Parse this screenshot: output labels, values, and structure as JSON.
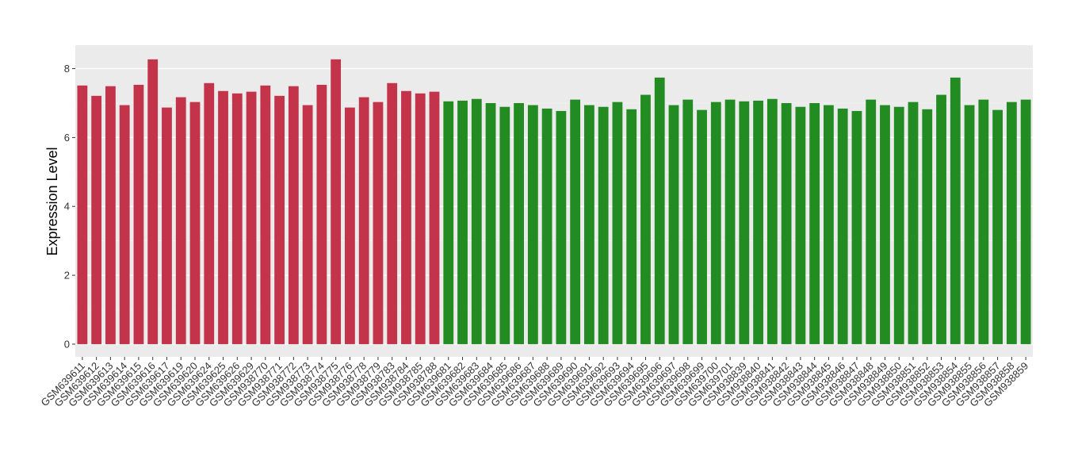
{
  "chart_data": {
    "type": "bar",
    "y_label": "Expression Level",
    "categories": [
      "GSM639611",
      "GSM639612",
      "GSM639613",
      "GSM639614",
      "GSM639615",
      "GSM639616",
      "GSM639617",
      "GSM639619",
      "GSM639620",
      "GSM639624",
      "GSM639625",
      "GSM639626",
      "GSM639629",
      "GSM938770",
      "GSM938771",
      "GSM938772",
      "GSM938773",
      "GSM938774",
      "GSM938775",
      "GSM938776",
      "GSM938778",
      "GSM938779",
      "GSM938783",
      "GSM938784",
      "GSM938785",
      "GSM938788",
      "GSM639681",
      "GSM639682",
      "GSM639683",
      "GSM639684",
      "GSM639685",
      "GSM639686",
      "GSM639687",
      "GSM639688",
      "GSM639689",
      "GSM639690",
      "GSM639691",
      "GSM639692",
      "GSM639693",
      "GSM639694",
      "GSM639695",
      "GSM639696",
      "GSM639697",
      "GSM639698",
      "GSM639699",
      "GSM639700",
      "GSM639701",
      "GSM938839",
      "GSM938840",
      "GSM938841",
      "GSM938842",
      "GSM938843",
      "GSM938844",
      "GSM938845",
      "GSM938846",
      "GSM938847",
      "GSM938848",
      "GSM938849",
      "GSM938850",
      "GSM938851",
      "GSM938852",
      "GSM938853",
      "GSM938854",
      "GSM938855",
      "GSM938856",
      "GSM938857",
      "GSM938858",
      "GSM938859"
    ],
    "values": [
      7.51,
      7.21,
      7.49,
      6.94,
      7.53,
      8.27,
      6.87,
      7.17,
      7.03,
      7.58,
      7.35,
      7.28,
      7.33,
      7.51,
      7.21,
      7.49,
      6.94,
      7.53,
      8.27,
      6.87,
      7.17,
      7.03,
      7.58,
      7.35,
      7.28,
      7.33,
      7.05,
      7.07,
      7.12,
      7.0,
      6.89,
      7.0,
      6.94,
      6.84,
      6.77,
      7.1,
      6.94,
      6.89,
      7.03,
      6.82,
      7.24,
      7.74,
      6.94,
      7.1,
      6.8,
      7.03,
      7.1,
      7.05,
      7.07,
      7.12,
      7.0,
      6.89,
      7.0,
      6.94,
      6.84,
      6.77,
      7.1,
      6.94,
      6.89,
      7.03,
      6.82,
      7.24,
      7.74,
      6.94,
      7.1,
      6.8,
      7.03,
      7.1
    ],
    "colors": [
      "#c3334a",
      "#c3334a",
      "#c3334a",
      "#c3334a",
      "#c3334a",
      "#c3334a",
      "#c3334a",
      "#c3334a",
      "#c3334a",
      "#c3334a",
      "#c3334a",
      "#c3334a",
      "#c3334a",
      "#c3334a",
      "#c3334a",
      "#c3334a",
      "#c3334a",
      "#c3334a",
      "#c3334a",
      "#c3334a",
      "#c3334a",
      "#c3334a",
      "#c3334a",
      "#c3334a",
      "#c3334a",
      "#c3334a",
      "#228b22",
      "#228b22",
      "#228b22",
      "#228b22",
      "#228b22",
      "#228b22",
      "#228b22",
      "#228b22",
      "#228b22",
      "#228b22",
      "#228b22",
      "#228b22",
      "#228b22",
      "#228b22",
      "#228b22",
      "#228b22",
      "#228b22",
      "#228b22",
      "#228b22",
      "#228b22",
      "#228b22",
      "#228b22",
      "#228b22",
      "#228b22",
      "#228b22",
      "#228b22",
      "#228b22",
      "#228b22",
      "#228b22",
      "#228b22",
      "#228b22",
      "#228b22",
      "#228b22",
      "#228b22",
      "#228b22",
      "#228b22",
      "#228b22",
      "#228b22",
      "#228b22",
      "#228b22",
      "#228b22",
      "#228b22"
    ],
    "ylim": [
      -0.37,
      8.68
    ],
    "yticks": [
      0,
      2,
      4,
      6,
      8
    ],
    "grid": true
  }
}
